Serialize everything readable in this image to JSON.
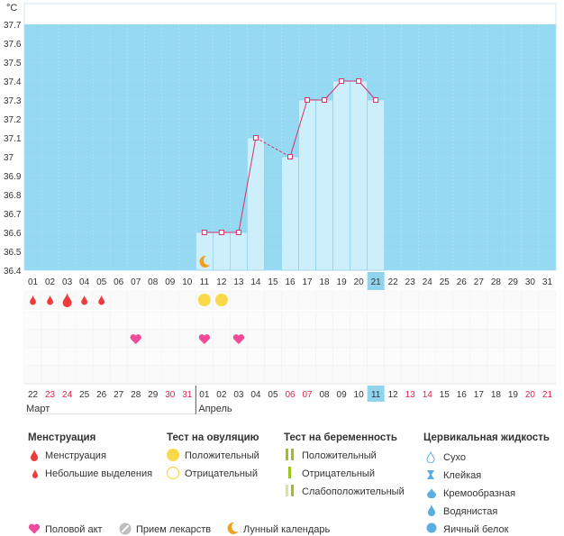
{
  "chart_data": {
    "type": "bar",
    "ylabel": "°C",
    "ylim": [
      36.4,
      37.7
    ],
    "y_ticks": [
      "36.4",
      "36.5",
      "36.6",
      "36.7",
      "36.8",
      "36.9",
      "37",
      "37.1",
      "37.2",
      "37.3",
      "37.4",
      "37.5",
      "37.6",
      "37.7"
    ],
    "categories": [
      "01",
      "02",
      "03",
      "04",
      "05",
      "06",
      "07",
      "08",
      "09",
      "10",
      "11",
      "12",
      "13",
      "14",
      "15",
      "16",
      "17",
      "18",
      "19",
      "20",
      "21",
      "22",
      "23",
      "24",
      "25",
      "26",
      "27",
      "28",
      "29",
      "30",
      "31"
    ],
    "series": [
      {
        "values": [
          null,
          null,
          null,
          null,
          null,
          null,
          null,
          null,
          null,
          null,
          36.6,
          36.6,
          36.6,
          37.1,
          null,
          37.0,
          37.3,
          37.3,
          37.4,
          37.4,
          37.3,
          null,
          null,
          null,
          null,
          null,
          null,
          null,
          null,
          null,
          null
        ]
      }
    ],
    "dashed_segments": [
      [
        14,
        16
      ]
    ],
    "highlight_day": "21",
    "bottom_dates": [
      "22",
      "23",
      "24",
      "25",
      "26",
      "27",
      "28",
      "29",
      "30",
      "31",
      "01",
      "02",
      "03",
      "04",
      "05",
      "06",
      "07",
      "08",
      "09",
      "10",
      "11",
      "12",
      "13",
      "14",
      "15",
      "16",
      "17",
      "18",
      "19",
      "20",
      "21"
    ],
    "bottom_dates_red": [
      false,
      true,
      true,
      false,
      false,
      false,
      false,
      false,
      true,
      true,
      false,
      false,
      false,
      false,
      false,
      true,
      true,
      false,
      false,
      false,
      false,
      false,
      true,
      true,
      false,
      false,
      false,
      false,
      false,
      true,
      true
    ],
    "highlight_bottom": "11",
    "month_labels": [
      "Март",
      "Апрель"
    ],
    "markers": {
      "menstruation_large": [
        3
      ],
      "menstruation_small": [
        1,
        2,
        4,
        5
      ],
      "ovulation_positive": [
        11,
        12
      ],
      "intercourse": [
        7,
        11,
        13
      ],
      "lunar": [
        11
      ]
    }
  },
  "legend": {
    "menstruation": {
      "title": "Менструация",
      "items": [
        "Менструация",
        "Небольшие выделения"
      ]
    },
    "ovulation": {
      "title": "Тест на овуляцию",
      "items": [
        "Положительный",
        "Отрицательный"
      ]
    },
    "pregnancy": {
      "title": "Тест на беременность",
      "items": [
        "Положительный",
        "Отрицательный",
        "Слабоположительный"
      ]
    },
    "cervical": {
      "title": "Цервикальная жидкость",
      "items": [
        "Сухо",
        "Клейкая",
        "Кремообразная",
        "Водянистая",
        "Яичный белок"
      ]
    },
    "bottom": [
      "Половой акт",
      "Прием лекарств",
      "Лунный календарь"
    ]
  },
  "colors": {
    "sky": "#95d9f3",
    "bar": "#cdeefb",
    "line": "#d6336c",
    "drop": "#ee3b3b",
    "ovulation": "#f9d94a",
    "heart": "#f04a9a",
    "moon": "#f0a020",
    "pregnancy": "#9bc31e",
    "highlight": "#8fd3ec",
    "cervical": "#5aaee0"
  }
}
